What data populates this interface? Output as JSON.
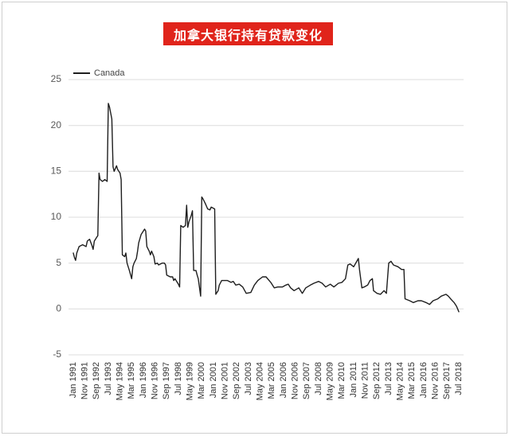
{
  "colors": {
    "banner": "#e0241b",
    "series_line": "#1e1e1e",
    "gridline": "#dcdcdc"
  },
  "chart_data": {
    "type": "line",
    "title": "加拿大银行持有贷款变化",
    "xlabel": "",
    "ylabel": "",
    "legend": {
      "position": "top-left"
    },
    "grid": true,
    "ylim": [
      -5,
      25
    ],
    "yticks": [
      25,
      20,
      15,
      10,
      5,
      0,
      -5
    ],
    "xlim": [
      "1991-01",
      "2018-07"
    ],
    "xticks": [
      "Jan 1991",
      "Nov 1991",
      "Sep 1992",
      "Jul 1993",
      "May 1994",
      "Mar 1995",
      "Jan 1996",
      "Nov 1996",
      "Sep 1997",
      "Jul 1998",
      "May 1999",
      "Mar 2000",
      "Jan 2001",
      "Nov 2001",
      "Sep 2002",
      "Jul 2003",
      "May 2004",
      "Mar 2005",
      "Jan 2006",
      "Nov 2006",
      "Sep 2007",
      "Jul 2008",
      "May 2009",
      "Mar 2010",
      "Jan 2011",
      "Nov 2011",
      "Sep 2012",
      "Jul 2013",
      "May 2014",
      "Mar 2015",
      "Jan 2016",
      "Nov 2016",
      "Sep 2017",
      "Jul 2018"
    ],
    "series": [
      {
        "name": "Canada",
        "points": [
          [
            "1991-01",
            6.1
          ],
          [
            "1991-02",
            5.6
          ],
          [
            "1991-03",
            5.3
          ],
          [
            "1991-04",
            6.1
          ],
          [
            "1991-06",
            6.8
          ],
          [
            "1991-09",
            7.0
          ],
          [
            "1991-12",
            6.8
          ],
          [
            "1992-01",
            7.4
          ],
          [
            "1992-03",
            7.6
          ],
          [
            "1992-05",
            6.9
          ],
          [
            "1992-06",
            6.5
          ],
          [
            "1992-07",
            7.4
          ],
          [
            "1992-09",
            7.8
          ],
          [
            "1992-10",
            8.0
          ],
          [
            "1992-11",
            14.8
          ],
          [
            "1992-12",
            14.1
          ],
          [
            "1993-02",
            13.9
          ],
          [
            "1993-04",
            14.1
          ],
          [
            "1993-06",
            13.9
          ],
          [
            "1993-07",
            22.4
          ],
          [
            "1993-08",
            22.0
          ],
          [
            "1993-10",
            20.7
          ],
          [
            "1993-11",
            15.5
          ],
          [
            "1993-12",
            15.0
          ],
          [
            "1994-02",
            15.6
          ],
          [
            "1994-03",
            15.2
          ],
          [
            "1994-05",
            14.8
          ],
          [
            "1994-06",
            14.1
          ],
          [
            "1994-07",
            5.9
          ],
          [
            "1994-09",
            5.7
          ],
          [
            "1994-10",
            6.1
          ],
          [
            "1994-11",
            5.0
          ],
          [
            "1995-01",
            4.2
          ],
          [
            "1995-03",
            3.3
          ],
          [
            "1995-04",
            4.6
          ],
          [
            "1995-05",
            5.0
          ],
          [
            "1995-07",
            5.5
          ],
          [
            "1995-08",
            6.3
          ],
          [
            "1995-09",
            7.2
          ],
          [
            "1995-11",
            8.1
          ],
          [
            "1996-02",
            8.7
          ],
          [
            "1996-03",
            8.5
          ],
          [
            "1996-04",
            6.8
          ],
          [
            "1996-06",
            6.3
          ],
          [
            "1996-07",
            5.9
          ],
          [
            "1996-08",
            6.3
          ],
          [
            "1996-10",
            5.7
          ],
          [
            "1996-11",
            4.9
          ],
          [
            "1997-01",
            5.0
          ],
          [
            "1997-02",
            4.8
          ],
          [
            "1997-05",
            5.0
          ],
          [
            "1997-07",
            5.0
          ],
          [
            "1997-08",
            4.8
          ],
          [
            "1997-09",
            3.7
          ],
          [
            "1997-12",
            3.5
          ],
          [
            "1998-02",
            3.5
          ],
          [
            "1998-03",
            3.1
          ],
          [
            "1998-04",
            3.3
          ],
          [
            "1998-06",
            2.9
          ],
          [
            "1998-07",
            2.7
          ],
          [
            "1998-08",
            2.4
          ],
          [
            "1998-09",
            9.1
          ],
          [
            "1998-11",
            8.9
          ],
          [
            "1999-01",
            9.1
          ],
          [
            "1999-02",
            11.3
          ],
          [
            "1999-03",
            8.9
          ],
          [
            "1999-04",
            9.5
          ],
          [
            "1999-06",
            10.2
          ],
          [
            "1999-07",
            10.7
          ],
          [
            "1999-08",
            4.2
          ],
          [
            "1999-10",
            4.2
          ],
          [
            "1999-11",
            3.7
          ],
          [
            "1999-12",
            3.3
          ],
          [
            "2000-02",
            1.4
          ],
          [
            "2000-03",
            12.2
          ],
          [
            "2000-04",
            12.0
          ],
          [
            "2000-06",
            11.5
          ],
          [
            "2000-08",
            10.9
          ],
          [
            "2000-10",
            10.8
          ],
          [
            "2000-11",
            11.1
          ],
          [
            "2001-02",
            10.9
          ],
          [
            "2001-03",
            1.6
          ],
          [
            "2001-05",
            2.0
          ],
          [
            "2001-06",
            2.6
          ],
          [
            "2001-08",
            3.1
          ],
          [
            "2001-11",
            3.1
          ],
          [
            "2002-01",
            3.1
          ],
          [
            "2002-04",
            2.9
          ],
          [
            "2002-06",
            3.0
          ],
          [
            "2002-08",
            2.6
          ],
          [
            "2002-11",
            2.7
          ],
          [
            "2003-02",
            2.4
          ],
          [
            "2003-05",
            1.7
          ],
          [
            "2003-09",
            1.8
          ],
          [
            "2003-12",
            2.6
          ],
          [
            "2004-03",
            3.1
          ],
          [
            "2004-07",
            3.5
          ],
          [
            "2004-10",
            3.5
          ],
          [
            "2005-02",
            2.9
          ],
          [
            "2005-05",
            2.3
          ],
          [
            "2005-08",
            2.4
          ],
          [
            "2005-12",
            2.4
          ],
          [
            "2006-03",
            2.6
          ],
          [
            "2006-05",
            2.7
          ],
          [
            "2006-07",
            2.3
          ],
          [
            "2006-10",
            2.0
          ],
          [
            "2007-02",
            2.3
          ],
          [
            "2007-05",
            1.7
          ],
          [
            "2007-08",
            2.3
          ],
          [
            "2007-12",
            2.6
          ],
          [
            "2008-03",
            2.8
          ],
          [
            "2008-07",
            3.0
          ],
          [
            "2008-10",
            2.8
          ],
          [
            "2009-01",
            2.4
          ],
          [
            "2009-05",
            2.7
          ],
          [
            "2009-08",
            2.4
          ],
          [
            "2009-12",
            2.8
          ],
          [
            "2010-03",
            2.9
          ],
          [
            "2010-06",
            3.3
          ],
          [
            "2010-08",
            4.8
          ],
          [
            "2010-10",
            4.9
          ],
          [
            "2011-01",
            4.6
          ],
          [
            "2011-05",
            5.5
          ],
          [
            "2011-06",
            4.3
          ],
          [
            "2011-08",
            2.3
          ],
          [
            "2011-10",
            2.4
          ],
          [
            "2012-01",
            2.6
          ],
          [
            "2012-03",
            3.1
          ],
          [
            "2012-05",
            3.3
          ],
          [
            "2012-06",
            2.0
          ],
          [
            "2012-09",
            1.7
          ],
          [
            "2012-12",
            1.6
          ],
          [
            "2013-03",
            2.0
          ],
          [
            "2013-05",
            1.7
          ],
          [
            "2013-07",
            5.0
          ],
          [
            "2013-09",
            5.2
          ],
          [
            "2013-11",
            4.8
          ],
          [
            "2014-03",
            4.6
          ],
          [
            "2014-06",
            4.3
          ],
          [
            "2014-08",
            4.3
          ],
          [
            "2014-09",
            1.1
          ],
          [
            "2015-01",
            0.9
          ],
          [
            "2015-04",
            0.7
          ],
          [
            "2015-08",
            0.9
          ],
          [
            "2015-11",
            0.9
          ],
          [
            "2016-03",
            0.7
          ],
          [
            "2016-06",
            0.5
          ],
          [
            "2016-09",
            0.9
          ],
          [
            "2017-01",
            1.1
          ],
          [
            "2017-04",
            1.4
          ],
          [
            "2017-08",
            1.6
          ],
          [
            "2017-10",
            1.4
          ],
          [
            "2017-12",
            1.1
          ],
          [
            "2018-03",
            0.7
          ],
          [
            "2018-05",
            0.3
          ],
          [
            "2018-07",
            -0.3
          ]
        ]
      }
    ]
  }
}
